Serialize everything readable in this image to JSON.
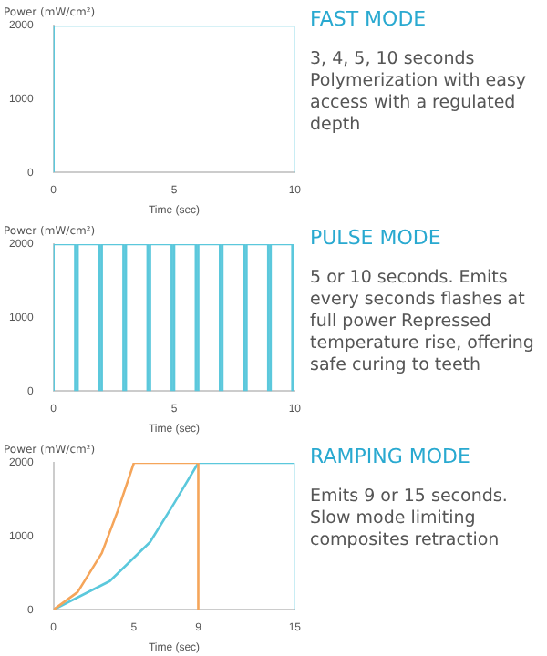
{
  "chart_data": [
    {
      "type": "line",
      "title": "FAST MODE",
      "annotations": [
        "3, 4, 5, 10 seconds Polymerization with easy access with a regulated depth"
      ],
      "xlabel": "Time (sec)",
      "ylabel": "Power (mW/cm²)",
      "xlim": [
        0,
        10
      ],
      "xticks": [
        0,
        5,
        10
      ],
      "ylim": [
        0,
        2000
      ],
      "yticks": [
        0,
        1000,
        2000
      ],
      "grid": false,
      "legend": false,
      "marker": "none",
      "series": [
        {
          "color": "#5bc8dc",
          "x": [
            0,
            0,
            10,
            10
          ],
          "values": [
            0,
            2000,
            2000,
            0
          ]
        }
      ]
    },
    {
      "type": "line",
      "title": "PULSE MODE",
      "annotations": [
        "5 or 10 seconds. Emits every seconds flashes at full power Repressed temperature rise, offering safe curing to teeth"
      ],
      "xlabel": "Time (sec)",
      "ylabel": "Power (mW/cm²)",
      "xlim": [
        0,
        10
      ],
      "xticks": [
        0,
        5,
        10
      ],
      "ylim": [
        0,
        2000
      ],
      "yticks": [
        0,
        1000,
        2000
      ],
      "grid": false,
      "legend": false,
      "marker": "none",
      "series": [
        {
          "color": "#5bc8dc",
          "x": [
            0,
            0,
            0.9,
            0.9,
            1,
            1,
            1.9,
            1.9,
            2,
            2,
            2.9,
            2.9,
            3,
            3,
            3.9,
            3.9,
            4,
            4,
            4.9,
            4.9,
            5,
            5,
            5.9,
            5.9,
            6,
            6,
            6.9,
            6.9,
            7,
            7,
            7.9,
            7.9,
            8,
            8,
            8.9,
            8.9,
            9,
            9,
            9.9,
            9.9
          ],
          "values": [
            0,
            2000,
            2000,
            0,
            0,
            2000,
            2000,
            0,
            0,
            2000,
            2000,
            0,
            0,
            2000,
            2000,
            0,
            0,
            2000,
            2000,
            0,
            0,
            2000,
            2000,
            0,
            0,
            2000,
            2000,
            0,
            0,
            2000,
            2000,
            0,
            0,
            2000,
            2000,
            0,
            0,
            2000,
            2000,
            0
          ]
        }
      ]
    },
    {
      "type": "line",
      "title": "RAMPING MODE",
      "annotations": [
        "Emits 9 or 15 seconds. Slow mode limiting composites retraction"
      ],
      "xlabel": "Time (sec)",
      "ylabel": "Power (mW/cm²)",
      "xlim": [
        0,
        15
      ],
      "xticks": [
        0,
        5,
        9,
        15
      ],
      "ylim": [
        0,
        2000
      ],
      "yticks": [
        0,
        1000,
        2000
      ],
      "grid": false,
      "legend": false,
      "marker": "none",
      "series": [
        {
          "color": "#f5a55a",
          "x": [
            0,
            1.5,
            3,
            4,
            5,
            9,
            9
          ],
          "values": [
            0,
            240,
            770,
            1350,
            2000,
            2000,
            0
          ]
        },
        {
          "color": "#5bc8dc",
          "x": [
            0,
            3.5,
            6,
            7.5,
            9,
            15,
            15
          ],
          "values": [
            0,
            390,
            920,
            1450,
            2000,
            2000,
            0
          ]
        }
      ]
    }
  ]
}
